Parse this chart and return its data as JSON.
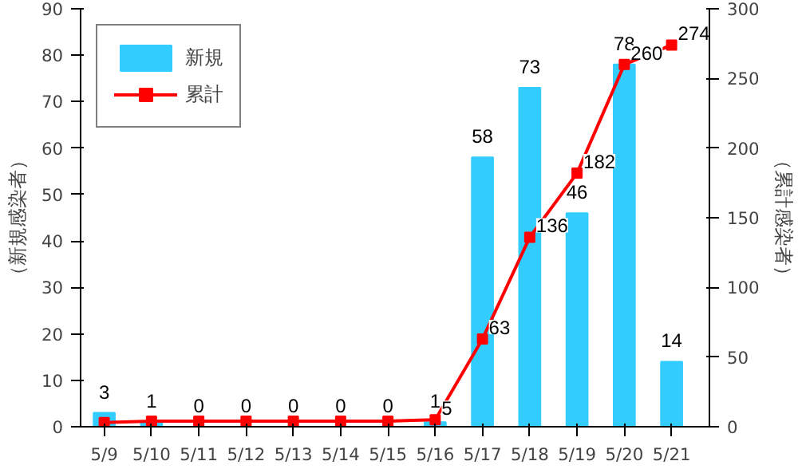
{
  "chart_data": {
    "type": "bar",
    "ylabel": "（新規感染者）",
    "y2label": "（累計感染者）",
    "categories": [
      "5/9",
      "5/10",
      "5/11",
      "5/12",
      "5/13",
      "5/14",
      "5/15",
      "5/16",
      "5/17",
      "5/18",
      "5/19",
      "5/20",
      "5/21"
    ],
    "series": [
      {
        "name": "新規",
        "color": "#33ccff",
        "values": [
          3,
          1,
          0,
          0,
          0,
          0,
          0,
          1,
          58,
          73,
          46,
          78,
          14
        ],
        "value_labels": [
          "3",
          "1",
          "0",
          "0",
          "0",
          "0",
          "0",
          "1",
          "58",
          "73",
          "46",
          "78",
          "14"
        ]
      },
      {
        "name": "累計",
        "type": "line",
        "axis": "y2",
        "color": "#ff0000",
        "marker": "square",
        "values": [
          3,
          4,
          4,
          4,
          4,
          4,
          4,
          5,
          63,
          136,
          182,
          260,
          274
        ],
        "value_labels": [
          null,
          null,
          null,
          null,
          null,
          null,
          null,
          "5",
          "63",
          "136",
          "182",
          "260",
          "274"
        ]
      }
    ],
    "ylim": [
      0,
      90
    ],
    "yticks": [
      0,
      10,
      20,
      30,
      40,
      50,
      60,
      70,
      80,
      90
    ],
    "y2lim": [
      0,
      300
    ],
    "y2ticks": [
      0,
      50,
      100,
      150,
      200,
      250,
      300
    ],
    "grid": false,
    "legend": "top left"
  }
}
